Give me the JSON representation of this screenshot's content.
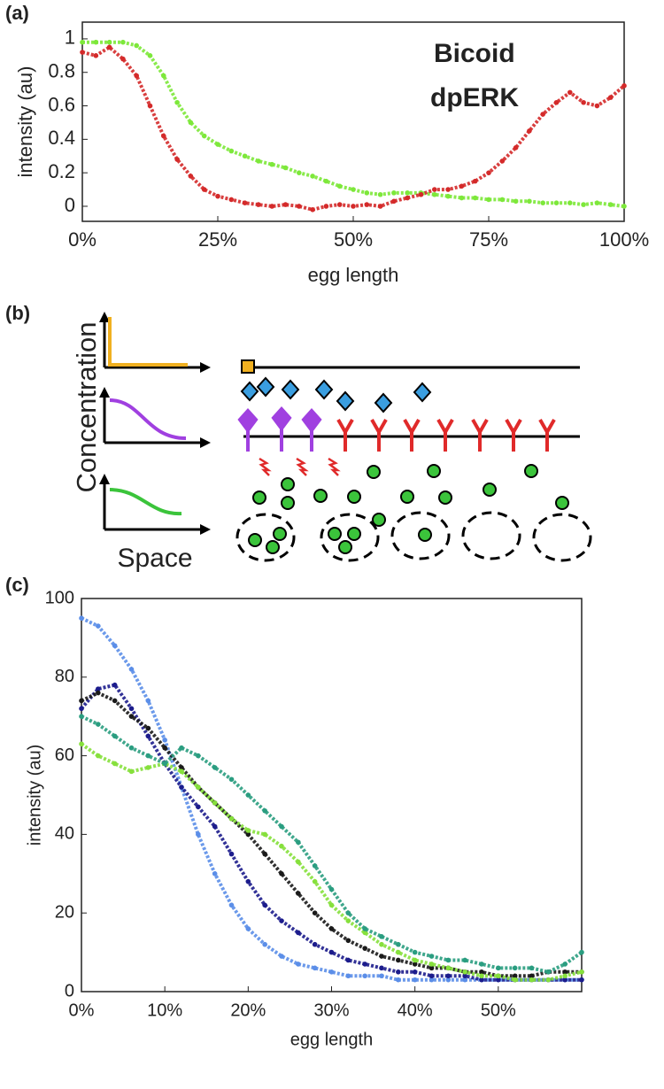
{
  "chart_data": [
    {
      "type": "scatter",
      "label": "(a)",
      "x_label": "egg length",
      "y_label": "intensity (au)",
      "legend": "upper right",
      "x": [
        0,
        2.5,
        5,
        7.5,
        10,
        12.5,
        15,
        17.5,
        20,
        22.5,
        25,
        27.5,
        30,
        32.5,
        35,
        37.5,
        40,
        42.5,
        45,
        47.5,
        50,
        52.5,
        55,
        57.5,
        60,
        62.5,
        65,
        67.5,
        70,
        72.5,
        75,
        77.5,
        80,
        82.5,
        85,
        87.5,
        90,
        92.5,
        95,
        97.5,
        100
      ],
      "series": [
        {
          "name": "Bicoid",
          "color": "#7de83a",
          "values": [
            0.98,
            0.98,
            0.98,
            0.98,
            0.96,
            0.9,
            0.78,
            0.62,
            0.5,
            0.42,
            0.37,
            0.33,
            0.3,
            0.27,
            0.25,
            0.23,
            0.2,
            0.18,
            0.15,
            0.12,
            0.1,
            0.08,
            0.07,
            0.08,
            0.08,
            0.08,
            0.07,
            0.06,
            0.05,
            0.05,
            0.04,
            0.04,
            0.03,
            0.03,
            0.02,
            0.02,
            0.02,
            0.01,
            0.02,
            0.01,
            0
          ]
        },
        {
          "name": "dpERK",
          "color": "#d42a2a",
          "values": [
            0.92,
            0.9,
            0.95,
            0.88,
            0.78,
            0.6,
            0.42,
            0.28,
            0.18,
            0.1,
            0.06,
            0.04,
            0.02,
            0.01,
            0,
            0.01,
            0,
            -0.02,
            0,
            0.01,
            0,
            0.01,
            0,
            0.03,
            0.05,
            0.07,
            0.1,
            0.1,
            0.12,
            0.15,
            0.2,
            0.27,
            0.35,
            0.45,
            0.55,
            0.62,
            0.68,
            0.62,
            0.6,
            0.65,
            0.72
          ]
        }
      ],
      "xlim": [
        0,
        100
      ],
      "xticks": [
        {
          "value": 0,
          "label": "0%"
        },
        {
          "value": 25,
          "label": "25%"
        },
        {
          "value": 50,
          "label": "50%"
        },
        {
          "value": 75,
          "label": "75%"
        },
        {
          "value": 100,
          "label": "100%"
        }
      ],
      "ylim": [
        -0.09,
        1.1
      ],
      "yticks": [
        0,
        0.2,
        0.4,
        0.6,
        0.8,
        1
      ]
    },
    {
      "type": "scatter",
      "label": "(c)",
      "x_label": "egg length",
      "y_label": "intensity (au)",
      "x": [
        0,
        2,
        4,
        6,
        8,
        10,
        12,
        14,
        16,
        18,
        20,
        22,
        24,
        26,
        28,
        30,
        32,
        34,
        36,
        38,
        40,
        42,
        44,
        46,
        48,
        50,
        52,
        54,
        56,
        58,
        60
      ],
      "series": [
        {
          "color": "#5b8ee8",
          "values": [
            95,
            93,
            88,
            82,
            74,
            64,
            52,
            40,
            30,
            22,
            16,
            12,
            9,
            7,
            6,
            5,
            4,
            4,
            4,
            3,
            3,
            3,
            3,
            3,
            3,
            3,
            3,
            3,
            3,
            3,
            3
          ]
        },
        {
          "color": "#1c1c8c",
          "values": [
            72,
            77,
            78,
            72,
            65,
            58,
            52,
            47,
            42,
            35,
            28,
            22,
            18,
            15,
            12,
            10,
            8,
            7,
            6,
            5,
            5,
            4,
            4,
            4,
            3,
            3,
            3,
            3,
            3,
            3,
            3
          ]
        },
        {
          "color": "#1a1a1a",
          "values": [
            74,
            76,
            74,
            70,
            67,
            62,
            57,
            52,
            48,
            44,
            40,
            35,
            30,
            25,
            20,
            16,
            13,
            11,
            9,
            8,
            7,
            6,
            6,
            5,
            5,
            4,
            4,
            4,
            5,
            5,
            5
          ]
        },
        {
          "color": "#86e03c",
          "values": [
            63,
            60,
            58,
            56,
            57,
            58,
            56,
            52,
            48,
            44,
            41,
            40,
            37,
            33,
            28,
            22,
            18,
            15,
            12,
            10,
            8,
            7,
            6,
            5,
            4,
            4,
            3,
            3,
            3,
            4,
            5
          ]
        },
        {
          "color": "#2a9d80",
          "values": [
            70,
            68,
            65,
            62,
            60,
            58,
            62,
            60,
            57,
            54,
            50,
            46,
            42,
            38,
            32,
            26,
            20,
            16,
            14,
            12,
            10,
            9,
            8,
            8,
            7,
            6,
            6,
            6,
            5,
            7,
            10
          ]
        }
      ],
      "xlim": [
        0,
        60
      ],
      "xticks": [
        {
          "value": 0,
          "label": "0%"
        },
        {
          "value": 10,
          "label": "10%"
        },
        {
          "value": 20,
          "label": "20%"
        },
        {
          "value": 30,
          "label": "30%"
        },
        {
          "value": 40,
          "label": "40%"
        },
        {
          "value": 50,
          "label": "50%"
        }
      ],
      "ylim": [
        0,
        100
      ],
      "yticks": [
        0,
        20,
        40,
        60,
        80,
        100
      ]
    }
  ],
  "diagram": {
    "label": "(b)",
    "y_label": "Concentration",
    "x_label": "Space"
  }
}
